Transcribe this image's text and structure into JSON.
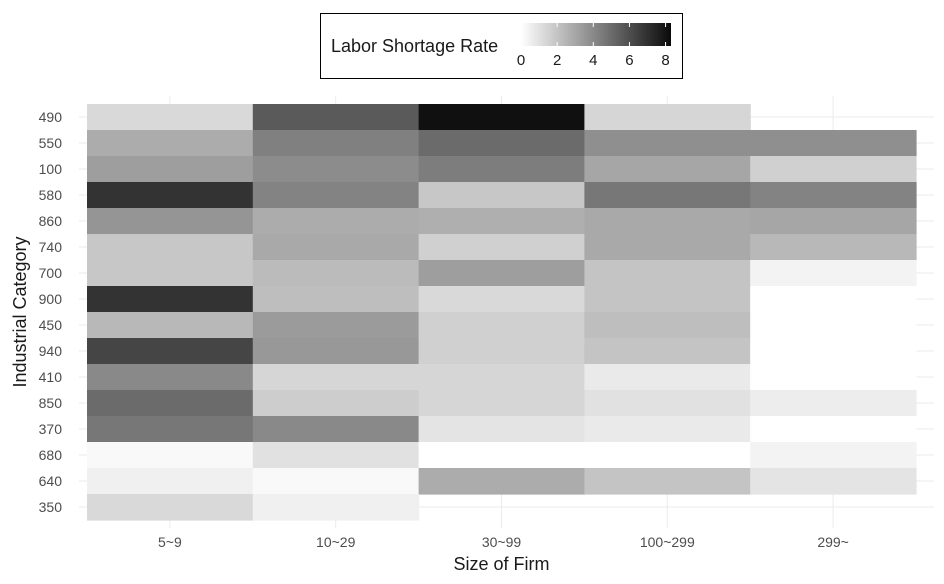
{
  "chart_data": {
    "type": "heatmap",
    "xlabel": "Size of Firm",
    "ylabel": "Industrial Category",
    "x_categories": [
      "5~9",
      "10~29",
      "30~99",
      "100~299",
      "299~"
    ],
    "y_categories": [
      "490",
      "550",
      "100",
      "580",
      "860",
      "740",
      "700",
      "900",
      "450",
      "940",
      "410",
      "850",
      "370",
      "680",
      "640",
      "350"
    ],
    "legend": {
      "title": "Labor Shortage Rate",
      "ticks": [
        "0",
        "2",
        "4",
        "6",
        "8"
      ],
      "range": [
        0,
        8.3
      ],
      "low_color": "#ffffff",
      "high_color": "#000000"
    },
    "values": [
      [
        1.3,
        5.6,
        8.1,
        1.4,
        null
      ],
      [
        2.8,
        4.3,
        5.0,
        3.8,
        3.8
      ],
      [
        3.3,
        3.9,
        4.4,
        3.0,
        1.6
      ],
      [
        6.9,
        4.2,
        1.9,
        4.6,
        4.2
      ],
      [
        3.6,
        2.8,
        2.7,
        2.9,
        3.0
      ],
      [
        1.9,
        2.9,
        1.6,
        2.9,
        2.4
      ],
      [
        1.9,
        2.3,
        3.3,
        2.0,
        0.4
      ],
      [
        6.9,
        2.2,
        1.3,
        2.0,
        0.0
      ],
      [
        2.4,
        3.4,
        1.6,
        2.2,
        0.0
      ],
      [
        6.3,
        3.5,
        1.6,
        2.0,
        0.0
      ],
      [
        4.0,
        1.4,
        1.4,
        0.7,
        0.0
      ],
      [
        5.0,
        1.7,
        1.4,
        1.0,
        0.6
      ],
      [
        4.6,
        4.0,
        0.9,
        0.7,
        0.0
      ],
      [
        0.2,
        1.0,
        0.0,
        0.0,
        0.4
      ],
      [
        0.5,
        0.2,
        2.8,
        2.0,
        0.9
      ],
      [
        1.3,
        0.5,
        null,
        null,
        null
      ]
    ]
  }
}
